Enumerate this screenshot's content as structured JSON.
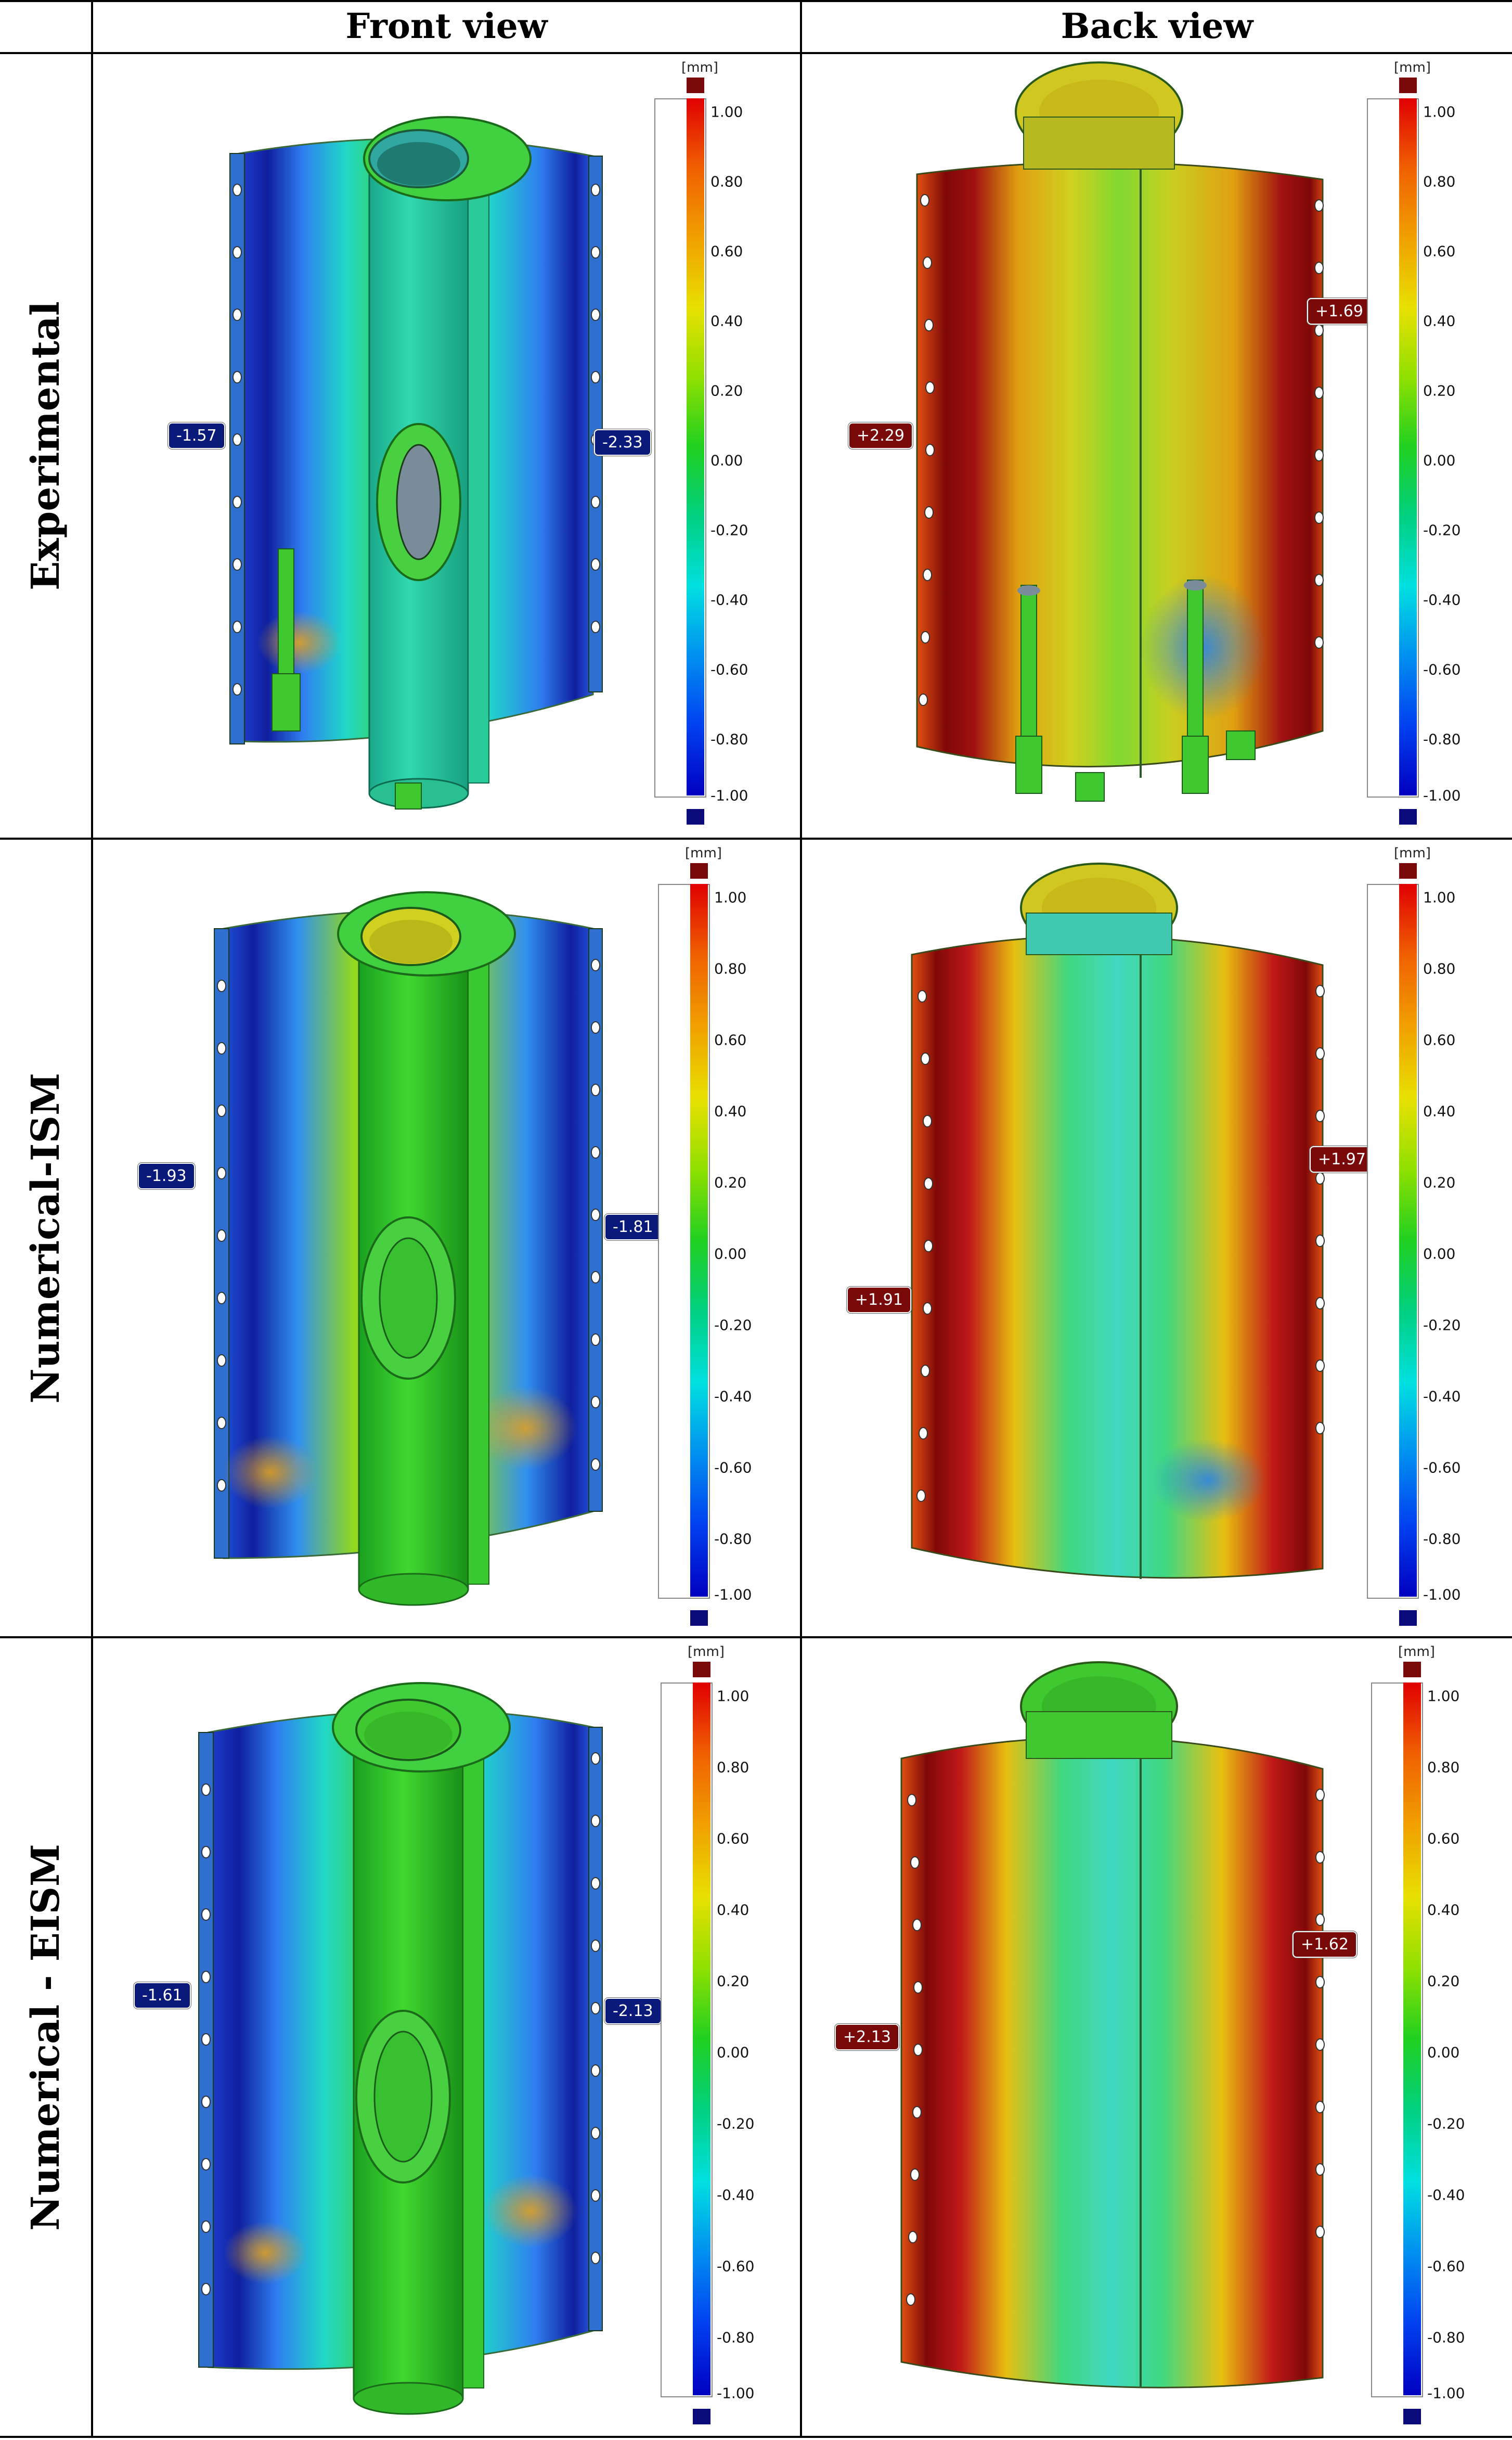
{
  "columns": {
    "front": "Front view",
    "back": "Back view"
  },
  "rows": [
    {
      "label": "Experimental",
      "front_callouts": [
        "-1.57",
        "-2.33"
      ],
      "back_callouts": [
        "+2.29",
        "+1.69"
      ]
    },
    {
      "label": "Numerical-ISM",
      "front_callouts": [
        "-1.93",
        "-1.81"
      ],
      "back_callouts": [
        "+1.91",
        "+1.97"
      ]
    },
    {
      "label": "Numerical - EISM",
      "front_callouts": [
        "-1.61",
        "-2.13"
      ],
      "back_callouts": [
        "+2.13",
        "+1.62"
      ]
    }
  ],
  "legend": {
    "unit": "[mm]",
    "ticks": [
      "1.00",
      "0.80",
      "0.60",
      "0.40",
      "0.20",
      "0.00",
      "-0.20",
      "-0.40",
      "-0.60",
      "-0.80",
      "-1.00"
    ]
  },
  "colors": {
    "negative_label": "#0a1a7a",
    "positive_label": "#7a0a0a"
  }
}
